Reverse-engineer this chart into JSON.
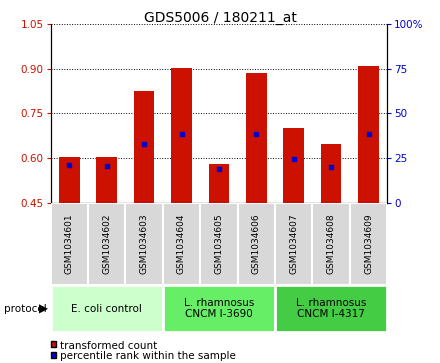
{
  "title": "GDS5006 / 180211_at",
  "samples": [
    "GSM1034601",
    "GSM1034602",
    "GSM1034603",
    "GSM1034604",
    "GSM1034605",
    "GSM1034606",
    "GSM1034607",
    "GSM1034608",
    "GSM1034609"
  ],
  "transformed_count": [
    0.605,
    0.603,
    0.825,
    0.902,
    0.582,
    0.885,
    0.7,
    0.648,
    0.91
  ],
  "percentile_rank": [
    0.578,
    0.573,
    0.648,
    0.68,
    0.565,
    0.68,
    0.598,
    0.57,
    0.682
  ],
  "ylim_left": [
    0.45,
    1.05
  ],
  "ylim_right": [
    0,
    100
  ],
  "yticks_left": [
    0.45,
    0.6,
    0.75,
    0.9,
    1.05
  ],
  "yticks_right": [
    0,
    25,
    50,
    75,
    100
  ],
  "bar_color": "#cc1100",
  "dot_color": "#0000cc",
  "group_configs": [
    {
      "start": 0,
      "end": 2,
      "color": "#ccffcc",
      "label": "E. coli control"
    },
    {
      "start": 3,
      "end": 5,
      "color": "#66ee66",
      "label": "L. rhamnosus\nCNCM I-3690"
    },
    {
      "start": 6,
      "end": 8,
      "color": "#44cc44",
      "label": "L. rhamnosus\nCNCM I-4317"
    }
  ],
  "protocol_label": "protocol",
  "legend_items": [
    {
      "label": "transformed count",
      "color": "#cc1100"
    },
    {
      "label": "percentile rank within the sample",
      "color": "#0000cc"
    }
  ],
  "tick_color_left": "#cc1100",
  "tick_color_right": "#0000cc",
  "title_fontsize": 10,
  "tick_fontsize": 7.5,
  "sample_fontsize": 6.5,
  "group_fontsize": 7.5,
  "legend_fontsize": 7.5
}
